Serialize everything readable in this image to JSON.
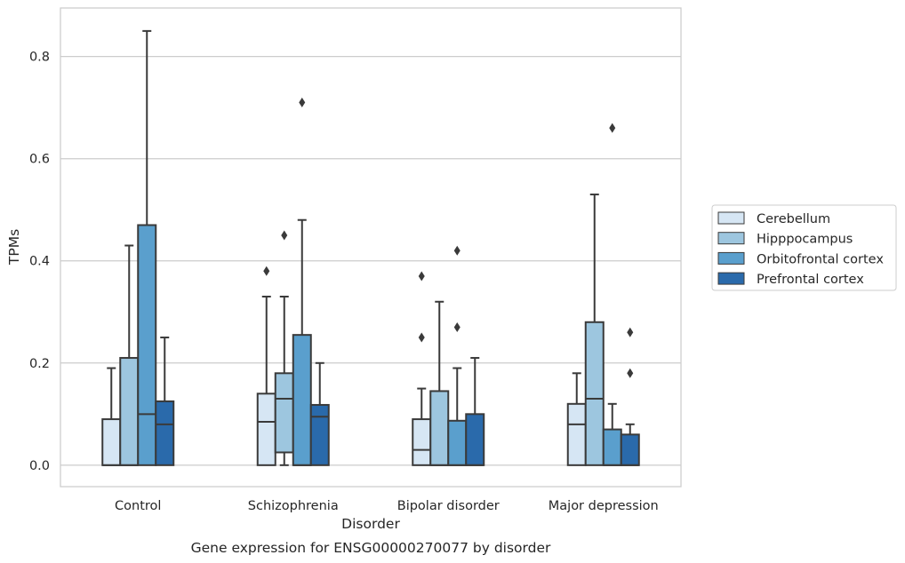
{
  "chart_data": {
    "type": "box",
    "title": "Gene expression for ENSG00000270077 by disorder",
    "xlabel": "Disorder",
    "ylabel": "TPMs",
    "ylim": [
      -0.042,
      0.895
    ],
    "yticks": [
      0.0,
      0.2,
      0.4,
      0.6,
      0.8
    ],
    "ytick_labels": [
      "0.0",
      "0.2",
      "0.4",
      "0.6",
      "0.8"
    ],
    "grid": true,
    "legend_position": "right",
    "categories": [
      "Control",
      "Schizophrenia",
      "Bipolar disorder",
      "Major depression"
    ],
    "series": [
      {
        "name": "Cerebellum",
        "color": "#d6e6f4",
        "boxes": [
          {
            "whislo": 0.0,
            "q1": 0.0,
            "med": 0.0,
            "q3": 0.09,
            "whishi": 0.19,
            "fliers": []
          },
          {
            "whislo": 0.0,
            "q1": 0.0,
            "med": 0.085,
            "q3": 0.14,
            "whishi": 0.33,
            "fliers": [
              0.38
            ]
          },
          {
            "whislo": 0.0,
            "q1": 0.0,
            "med": 0.03,
            "q3": 0.09,
            "whishi": 0.15,
            "fliers": [
              0.25,
              0.37
            ]
          },
          {
            "whislo": 0.0,
            "q1": 0.0,
            "med": 0.08,
            "q3": 0.12,
            "whishi": 0.18,
            "fliers": []
          }
        ]
      },
      {
        "name": "Hipppocampus",
        "color": "#9dc6df",
        "boxes": [
          {
            "whislo": 0.0,
            "q1": 0.0,
            "med": 0.0,
            "q3": 0.21,
            "whishi": 0.43,
            "fliers": []
          },
          {
            "whislo": 0.0,
            "q1": 0.025,
            "med": 0.13,
            "q3": 0.18,
            "whishi": 0.33,
            "fliers": [
              0.45
            ]
          },
          {
            "whislo": 0.0,
            "q1": 0.0,
            "med": 0.0,
            "q3": 0.145,
            "whishi": 0.32,
            "fliers": []
          },
          {
            "whislo": 0.0,
            "q1": 0.0,
            "med": 0.13,
            "q3": 0.28,
            "whishi": 0.53,
            "fliers": []
          }
        ]
      },
      {
        "name": "Orbitofrontal cortex",
        "color": "#5a9fcd",
        "boxes": [
          {
            "whislo": 0.0,
            "q1": 0.0,
            "med": 0.1,
            "q3": 0.47,
            "whishi": 0.85,
            "fliers": []
          },
          {
            "whislo": 0.0,
            "q1": 0.0,
            "med": 0.0,
            "q3": 0.255,
            "whishi": 0.48,
            "fliers": [
              0.71
            ]
          },
          {
            "whislo": 0.0,
            "q1": 0.0,
            "med": 0.0,
            "q3": 0.087,
            "whishi": 0.19,
            "fliers": [
              0.27,
              0.42
            ]
          },
          {
            "whislo": 0.0,
            "q1": 0.0,
            "med": 0.0,
            "q3": 0.07,
            "whishi": 0.12,
            "fliers": [
              0.66
            ]
          }
        ]
      },
      {
        "name": "Prefrontal cortex",
        "color": "#2a6aab",
        "boxes": [
          {
            "whislo": 0.0,
            "q1": 0.0,
            "med": 0.08,
            "q3": 0.125,
            "whishi": 0.25,
            "fliers": []
          },
          {
            "whislo": 0.0,
            "q1": 0.0,
            "med": 0.095,
            "q3": 0.118,
            "whishi": 0.2,
            "fliers": []
          },
          {
            "whislo": 0.0,
            "q1": 0.0,
            "med": 0.0,
            "q3": 0.1,
            "whishi": 0.21,
            "fliers": []
          },
          {
            "whislo": 0.0,
            "q1": 0.0,
            "med": 0.0,
            "q3": 0.06,
            "whishi": 0.08,
            "fliers": [
              0.18,
              0.26
            ]
          }
        ]
      }
    ]
  }
}
